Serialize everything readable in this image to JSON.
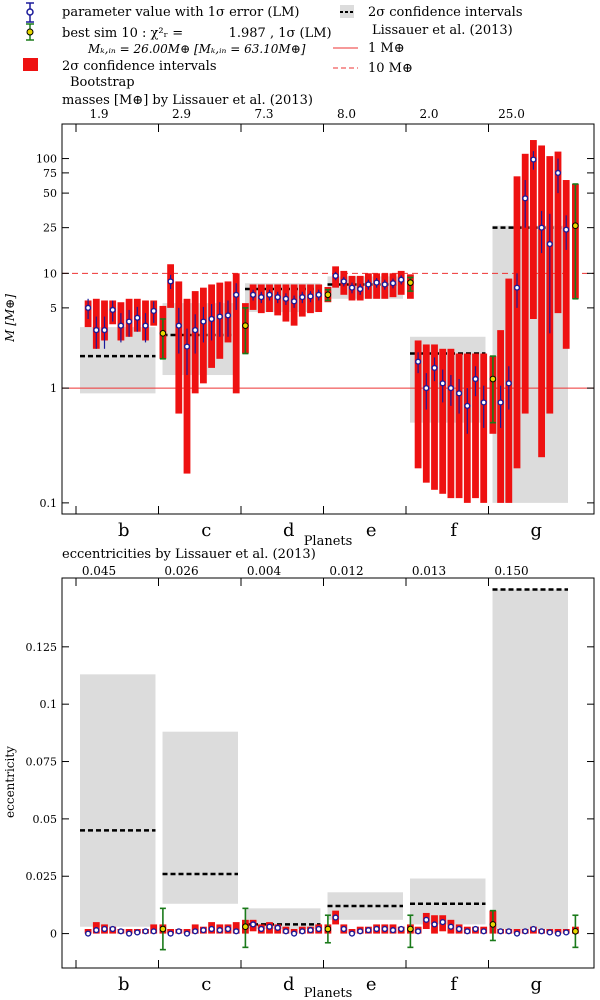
{
  "legend": {
    "lm": "parameter value with 1σ error (LM)",
    "best": "best sim 10 : χ²ᵣ =           1.987 , 1σ (LM)",
    "best_sub": "Mₖ,ᵢₙ = 26.00M⊕ [Mₖ,ᵢₙ = 63.10M⊕]",
    "boot_a": "2σ confidence intervals",
    "boot_b": "Bootstrap",
    "lis_a": "2σ confidence intervals",
    "lis_b": "Lissauer et al. (2013)",
    "ref_solid": "1 M⊕",
    "ref_dashed": "10 M⊕"
  },
  "colors": {
    "boot": "#ee1111",
    "lis_box": "#dcdcdc",
    "lm_marker": "#1a1a9a",
    "best_marker": "#1a7a1a",
    "best_fill": "#e8d800"
  },
  "chart_data": [
    {
      "type": "scatter",
      "title": "masses [M⊕] by Lissauer et al. (2013)",
      "top_tick_labels": [
        "1.9",
        "2.9",
        "7.3",
        "8.0",
        "2.0",
        "25.0"
      ],
      "xlabel": "Planets",
      "ylabel": "M [M⊕]",
      "categories": [
        "b",
        "c",
        "d",
        "e",
        "f",
        "g"
      ],
      "yscale": "log",
      "ylim": [
        0.08,
        200
      ],
      "ytick_values": [
        0.1,
        1,
        5,
        10,
        25,
        50,
        75,
        100
      ],
      "ytick_labels": [
        "0.1",
        "1",
        "5",
        "10",
        "25",
        "50",
        "75",
        "100"
      ],
      "ref_lines": [
        {
          "value": 1,
          "style": "solid"
        },
        {
          "value": 10,
          "style": "dashed"
        }
      ],
      "lissauer": [
        {
          "planet": "b",
          "value": 1.9,
          "low": 0.9,
          "high": 3.4
        },
        {
          "planet": "c",
          "value": 2.9,
          "low": 1.3,
          "high": 5.5
        },
        {
          "planet": "d",
          "value": 7.3,
          "low": 4.6,
          "high": 8.2
        },
        {
          "planet": "e",
          "value": 8.0,
          "low": 6.0,
          "high": 9.4
        },
        {
          "planet": "f",
          "value": 2.0,
          "low": 0.5,
          "high": 2.8
        },
        {
          "planet": "g",
          "value": 25.0,
          "low": 0.1,
          "high": 26.0
        }
      ],
      "series": [
        {
          "planet": "b",
          "lm": [
            5.0,
            3.2,
            3.2,
            4.8,
            3.5,
            3.8,
            4.1,
            3.5,
            4.7
          ],
          "lm_err": [
            1.0,
            1.0,
            1.0,
            1.0,
            1.0,
            1.0,
            1.0,
            1.0,
            1.0
          ],
          "boot_low": [
            3.4,
            2.2,
            2.6,
            3.6,
            2.6,
            2.8,
            3.1,
            2.6,
            3.5
          ],
          "boot_high": [
            5.8,
            6.0,
            5.8,
            5.8,
            5.6,
            6.0,
            6.0,
            5.8,
            5.8
          ],
          "best": 3.0,
          "best_err": [
            1.8,
            4.0
          ],
          "best_box": [
            1.8,
            5.2
          ]
        },
        {
          "planet": "c",
          "lm": [
            8.5,
            3.5,
            2.3,
            3.2,
            3.8,
            4.0,
            4.2,
            4.3,
            6.5
          ],
          "lm_err": [
            1.2,
            1.5,
            1.0,
            1.2,
            1.3,
            1.4,
            1.4,
            1.5,
            1.7
          ],
          "boot_low": [
            5.0,
            0.6,
            0.18,
            0.9,
            1.1,
            1.5,
            1.8,
            2.5,
            0.9
          ],
          "boot_high": [
            12.0,
            8.5,
            6.0,
            7.0,
            7.5,
            8.0,
            8.3,
            8.5,
            10.0
          ],
          "best": 3.5,
          "best_err": [
            2.0,
            5.0
          ],
          "best_box": [
            2.0,
            5.5
          ]
        },
        {
          "planet": "d",
          "lm": [
            6.5,
            6.2,
            6.5,
            6.2,
            6.0,
            5.7,
            6.2,
            6.3,
            6.5
          ],
          "lm_err": [
            0.7,
            0.7,
            0.7,
            0.7,
            0.7,
            0.7,
            0.7,
            0.7,
            0.7
          ],
          "boot_low": [
            4.8,
            4.5,
            4.6,
            4.3,
            3.8,
            3.5,
            4.2,
            4.5,
            4.6
          ],
          "boot_high": [
            8.0,
            8.0,
            8.0,
            8.0,
            8.0,
            8.0,
            8.0,
            8.0,
            8.0
          ],
          "best": 6.5,
          "best_err": [
            5.8,
            7.2
          ],
          "best_box": [
            5.6,
            7.6
          ]
        },
        {
          "planet": "e",
          "lm": [
            9.5,
            8.5,
            7.5,
            7.3,
            8.0,
            8.3,
            8.0,
            8.2,
            8.8
          ],
          "lm_err": [
            0.8,
            0.8,
            0.8,
            0.8,
            0.8,
            0.8,
            0.8,
            0.8,
            0.8
          ],
          "boot_low": [
            7.5,
            6.5,
            5.8,
            5.8,
            6.0,
            6.0,
            6.0,
            6.2,
            6.5
          ],
          "boot_high": [
            11.5,
            10.5,
            9.5,
            9.5,
            10.0,
            10.0,
            10.0,
            10.0,
            10.5
          ],
          "best": 8.3,
          "best_err": [
            7.0,
            9.2
          ],
          "best_box": [
            6.0,
            9.8
          ]
        },
        {
          "planet": "f",
          "lm": [
            1.7,
            1.0,
            1.5,
            1.1,
            1.0,
            0.9,
            0.7,
            1.2,
            0.75
          ],
          "lm_err": [
            0.35,
            0.35,
            0.35,
            0.35,
            0.3,
            0.3,
            0.3,
            0.35,
            0.3
          ],
          "boot_low": [
            0.2,
            0.15,
            0.13,
            0.12,
            0.11,
            0.11,
            0.1,
            0.11,
            0.1
          ],
          "boot_high": [
            2.6,
            2.4,
            2.4,
            2.2,
            2.2,
            2.0,
            2.0,
            2.0,
            2.0
          ],
          "best": 1.2,
          "best_err": [
            0.5,
            1.9
          ],
          "best_box": [
            0.4,
            1.9
          ]
        },
        {
          "planet": "g",
          "lm": [
            0.75,
            1.1,
            7.5,
            45,
            98,
            25,
            18,
            75,
            24
          ],
          "lm_err": [
            0.3,
            0.45,
            2.5,
            20,
            18,
            10,
            15,
            25,
            8
          ],
          "boot_low": [
            0.1,
            0.1,
            0.2,
            0.6,
            4,
            0.25,
            0.6,
            4.5,
            2.2
          ],
          "boot_high": [
            3.2,
            9,
            70,
            110,
            145,
            130,
            105,
            115,
            65
          ],
          "best": 26,
          "best_err": [
            6,
            60
          ],
          "best_box": [
            6,
            60
          ]
        }
      ]
    },
    {
      "type": "scatter",
      "title": "eccentricities by Lissauer et al. (2013)",
      "top_tick_labels": [
        "0.045",
        "0.026",
        "0.004",
        "0.012",
        "0.013",
        "0.150"
      ],
      "xlabel": "Planets",
      "ylabel": "eccentricity",
      "categories": [
        "b",
        "c",
        "d",
        "e",
        "f",
        "g"
      ],
      "ylim": [
        -0.015,
        0.155
      ],
      "ytick_values": [
        0,
        0.025,
        0.05,
        0.075,
        0.1,
        0.125
      ],
      "ytick_labels": [
        "0",
        "0.025",
        "0.05",
        "0.075",
        "0.1",
        "0.125"
      ],
      "lissauer": [
        {
          "planet": "b",
          "value": 0.045,
          "low": 0.003,
          "high": 0.113
        },
        {
          "planet": "c",
          "value": 0.026,
          "low": 0.013,
          "high": 0.088
        },
        {
          "planet": "d",
          "value": 0.004,
          "low": 0.002,
          "high": 0.011
        },
        {
          "planet": "e",
          "value": 0.012,
          "low": 0.006,
          "high": 0.018
        },
        {
          "planet": "f",
          "value": 0.013,
          "low": 0.004,
          "high": 0.024
        },
        {
          "planet": "g",
          "value": 0.15,
          "low": 0.002,
          "high": 0.15
        }
      ],
      "series": [
        {
          "planet": "b",
          "lm": [
            0,
            0.0015,
            0.002,
            0.002,
            0.001,
            0,
            0.0005,
            0.001,
            0.001
          ],
          "boot_low": [
            0,
            0,
            0,
            0,
            0,
            0,
            0,
            0,
            0
          ],
          "boot_high": [
            0.002,
            0.005,
            0.004,
            0.003,
            0.002,
            0.002,
            0.002,
            0.002,
            0.004
          ],
          "best": 0.002,
          "best_err": [
            -0.007,
            0.011
          ],
          "best_box": [
            0,
            0.004
          ]
        },
        {
          "planet": "c",
          "lm": [
            0,
            0.001,
            0,
            0.001,
            0.0015,
            0.002,
            0.0015,
            0.002,
            0.001
          ],
          "boot_low": [
            0,
            0,
            0,
            0,
            0,
            0,
            0,
            0,
            0
          ],
          "boot_high": [
            0.002,
            0.002,
            0.002,
            0.004,
            0.003,
            0.005,
            0.004,
            0.004,
            0.005
          ],
          "best": 0.003,
          "best_err": [
            -0.006,
            0.011
          ],
          "best_box": [
            0,
            0.006
          ]
        },
        {
          "planet": "d",
          "lm": [
            0.004,
            0.002,
            0.003,
            0.0025,
            0.001,
            0,
            0.001,
            0.0015,
            0.002
          ],
          "boot_low": [
            0.001,
            0,
            0,
            0,
            0,
            0,
            0,
            0,
            0
          ],
          "boot_high": [
            0.006,
            0.004,
            0.005,
            0.004,
            0.003,
            0.002,
            0.003,
            0.003,
            0.004
          ],
          "best": 0.002,
          "best_err": [
            -0.004,
            0.008
          ],
          "best_box": [
            0,
            0.004
          ]
        },
        {
          "planet": "e",
          "lm": [
            0.007,
            0.002,
            0,
            0.001,
            0.0015,
            0.002,
            0.002,
            0.0015,
            0.002
          ],
          "boot_low": [
            0.004,
            0,
            0,
            0,
            0,
            0,
            0,
            0,
            0
          ],
          "boot_high": [
            0.01,
            0.004,
            0.002,
            0.003,
            0.003,
            0.004,
            0.004,
            0.004,
            0.003
          ],
          "best": 0.002,
          "best_err": [
            -0.006,
            0.008
          ],
          "best_box": [
            0,
            0.004
          ]
        },
        {
          "planet": "f",
          "lm": [
            0.001,
            0.006,
            0.004,
            0.005,
            0.003,
            0.002,
            0.001,
            0.002,
            0.001
          ],
          "boot_low": [
            0,
            0.002,
            0,
            0.001,
            0,
            0,
            0,
            0,
            0
          ],
          "boot_high": [
            0.003,
            0.009,
            0.008,
            0.008,
            0.006,
            0.004,
            0.003,
            0.003,
            0.003
          ],
          "best": 0.004,
          "best_err": [
            -0.003,
            0.01
          ],
          "best_box": [
            0,
            0.01
          ]
        },
        {
          "planet": "g",
          "lm": [
            0.001,
            0.001,
            0,
            0.001,
            0.002,
            0.001,
            0.0005,
            0,
            0.0005
          ],
          "boot_low": [
            0,
            0,
            0,
            0,
            0,
            0,
            0,
            0,
            0
          ],
          "boot_high": [
            0.002,
            0.002,
            0.002,
            0.002,
            0.003,
            0.002,
            0.002,
            0.002,
            0.002
          ],
          "best": 0.001,
          "best_err": [
            -0.006,
            0.008
          ],
          "best_box": [
            0,
            0.003
          ]
        }
      ]
    }
  ]
}
